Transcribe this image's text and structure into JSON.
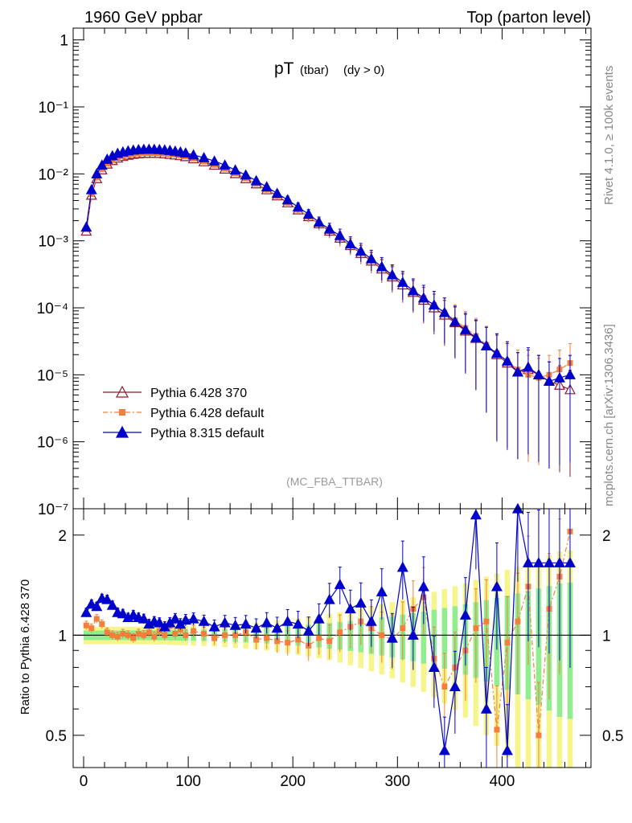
{
  "header": {
    "left": "1960 GeV ppbar",
    "right": "Top (parton level)"
  },
  "plot_title": {
    "main": "pT",
    "sub1": "(tbar)",
    "sub2": "(dy > 0)"
  },
  "watermark": "(MC_FBA_TTBAR)",
  "side_text": {
    "rivet": "Rivet 4.1.0, ≥ 100k events",
    "source": "mcplots.cern.ch [arXiv:1306.3436]"
  },
  "ratio_ylabel": "Ratio to Pythia 6.428 370",
  "legend": [
    {
      "label": "Pythia 6.428 370",
      "color": "#8b1a2b",
      "marker": "open-triangle"
    },
    {
      "label": "Pythia 6.428 default",
      "color": "#f47f3a",
      "marker": "filled-square"
    },
    {
      "label": "Pythia 8.315 default",
      "color": "#0000cc",
      "marker": "filled-triangle"
    }
  ],
  "colors": {
    "band_yellow": "#f5f58a",
    "band_green": "#90ee90"
  },
  "chart_data": {
    "type": "line",
    "main": {
      "yscale": "log",
      "ylim": [
        1e-07,
        1.5
      ],
      "xlim": [
        -10,
        485
      ],
      "ytick_labels": [
        {
          "v": 1,
          "t": "1"
        },
        {
          "v": 0.1,
          "t": "10⁻¹"
        },
        {
          "v": 0.01,
          "t": "10⁻²"
        },
        {
          "v": 0.001,
          "t": "10⁻³"
        },
        {
          "v": 0.0001,
          "t": "10⁻⁴"
        },
        {
          "v": 1e-05,
          "t": "10⁻⁵"
        },
        {
          "v": 1e-06,
          "t": "10⁻⁶"
        },
        {
          "v": 1e-07,
          "t": "10⁻⁷"
        }
      ],
      "series": [
        {
          "name": "Pythia 6.428 370",
          "x": [
            2.5,
            7.5,
            12.5,
            17.5,
            22.5,
            27.5,
            32.5,
            37.5,
            42.5,
            47.5,
            52.5,
            57.5,
            62.5,
            67.5,
            72.5,
            77.5,
            82.5,
            87.5,
            92.5,
            97.5,
            105,
            115,
            125,
            135,
            145,
            155,
            165,
            175,
            185,
            195,
            205,
            215,
            225,
            235,
            245,
            255,
            265,
            275,
            285,
            295,
            305,
            315,
            325,
            335,
            345,
            355,
            365,
            375,
            385,
            395,
            405,
            415,
            425,
            435,
            445,
            455,
            465
          ],
          "y": [
            0.0014,
            0.0048,
            0.0085,
            0.0115,
            0.014,
            0.0158,
            0.0172,
            0.0182,
            0.019,
            0.0196,
            0.02,
            0.0202,
            0.0203,
            0.0203,
            0.0202,
            0.02,
            0.0196,
            0.0192,
            0.0187,
            0.0181,
            0.0168,
            0.0152,
            0.0135,
            0.0118,
            0.0101,
            0.0085,
            0.0071,
            0.0058,
            0.0047,
            0.0037,
            0.0029,
            0.0023,
            0.0018,
            0.0014,
            0.0011,
            0.00085,
            0.00065,
            0.0005,
            0.00038,
            0.00029,
            0.00022,
            0.00017,
            0.00013,
            0.0001,
            7.8e-05,
            6e-05,
            4.5e-05,
            3.5e-05,
            2.7e-05,
            2e-05,
            1.5e-05,
            1.1e-05,
            1.2e-05,
            1e-05,
            8e-06,
            7e-06,
            6e-06
          ]
        },
        {
          "name": "Pythia 6.428 default",
          "x": [
            2.5,
            7.5,
            12.5,
            17.5,
            22.5,
            27.5,
            32.5,
            37.5,
            42.5,
            47.5,
            52.5,
            57.5,
            62.5,
            67.5,
            72.5,
            77.5,
            82.5,
            87.5,
            92.5,
            97.5,
            105,
            115,
            125,
            135,
            145,
            155,
            165,
            175,
            185,
            195,
            205,
            215,
            225,
            235,
            245,
            255,
            265,
            275,
            285,
            295,
            305,
            315,
            325,
            335,
            345,
            355,
            365,
            375,
            385,
            395,
            405,
            415,
            425,
            435,
            445,
            455,
            465
          ],
          "y": [
            0.0015,
            0.005,
            0.0088,
            0.0118,
            0.0142,
            0.016,
            0.0174,
            0.0184,
            0.0191,
            0.0197,
            0.0201,
            0.0203,
            0.0204,
            0.0204,
            0.0203,
            0.0201,
            0.0197,
            0.0193,
            0.0188,
            0.0182,
            0.0169,
            0.0153,
            0.0136,
            0.0119,
            0.0102,
            0.0086,
            0.0071,
            0.0058,
            0.0047,
            0.0037,
            0.0029,
            0.0023,
            0.0018,
            0.0014,
            0.0011,
            0.00085,
            0.00066,
            0.00051,
            0.00039,
            0.0003,
            0.00023,
            0.00018,
            0.00014,
            0.00011,
            8.5e-05,
            6.5e-05,
            5e-05,
            3.8e-05,
            2.8e-05,
            2.1e-05,
            1.6e-05,
            1.2e-05,
            1e-05,
            9e-06,
            1e-05,
            1.2e-05,
            1.5e-05
          ]
        },
        {
          "name": "Pythia 8.315 default",
          "x": [
            2.5,
            7.5,
            12.5,
            17.5,
            22.5,
            27.5,
            32.5,
            37.5,
            42.5,
            47.5,
            52.5,
            57.5,
            62.5,
            67.5,
            72.5,
            77.5,
            82.5,
            87.5,
            92.5,
            97.5,
            105,
            115,
            125,
            135,
            145,
            155,
            165,
            175,
            185,
            195,
            205,
            215,
            225,
            235,
            245,
            255,
            265,
            275,
            285,
            295,
            305,
            315,
            325,
            335,
            345,
            355,
            365,
            375,
            385,
            395,
            405,
            415,
            425,
            435,
            445,
            455,
            465
          ],
          "y": [
            0.0016,
            0.0058,
            0.01,
            0.0135,
            0.0165,
            0.0186,
            0.0202,
            0.0212,
            0.022,
            0.0226,
            0.023,
            0.0232,
            0.0233,
            0.0232,
            0.023,
            0.0227,
            0.0223,
            0.0218,
            0.0212,
            0.0205,
            0.0192,
            0.0174,
            0.0155,
            0.0135,
            0.0114,
            0.0096,
            0.0079,
            0.0064,
            0.0051,
            0.0041,
            0.0032,
            0.0025,
            0.0019,
            0.0015,
            0.0012,
            0.0009,
            0.0007,
            0.00054,
            0.00041,
            0.00031,
            0.00024,
            0.00018,
            0.00014,
            0.00011,
            8.5e-05,
            6.2e-05,
            4.7e-05,
            3.6e-05,
            2.7e-05,
            2.1e-05,
            1.6e-05,
            1.1e-05,
            1.3e-05,
            1e-05,
            8e-06,
            9e-06,
            1e-05
          ]
        }
      ]
    },
    "ratio": {
      "yscale": "log",
      "ylim": [
        0.4,
        2.4
      ],
      "xlim": [
        -10,
        485
      ],
      "ytick_labels": [
        {
          "v": 0.5,
          "t": "0.5"
        },
        {
          "v": 1,
          "t": "1"
        },
        {
          "v": 2,
          "t": "2"
        }
      ],
      "xtick_labels": [
        {
          "v": 0,
          "t": "0"
        },
        {
          "v": 100,
          "t": "100"
        },
        {
          "v": 200,
          "t": "200"
        },
        {
          "v": 300,
          "t": "300"
        },
        {
          "v": 400,
          "t": "400"
        }
      ],
      "series": [
        {
          "name": "Pythia 6.428 default",
          "x": [
            2.5,
            7.5,
            12.5,
            17.5,
            22.5,
            27.5,
            32.5,
            37.5,
            42.5,
            47.5,
            52.5,
            57.5,
            62.5,
            67.5,
            72.5,
            77.5,
            82.5,
            87.5,
            92.5,
            97.5,
            105,
            115,
            125,
            135,
            145,
            155,
            165,
            175,
            185,
            195,
            205,
            215,
            225,
            235,
            245,
            255,
            265,
            275,
            285,
            295,
            305,
            315,
            325,
            335,
            345,
            355,
            365,
            375,
            385,
            395,
            405,
            415,
            425,
            435,
            445,
            455,
            465
          ],
          "y": [
            1.07,
            1.05,
            1.12,
            1.08,
            1.02,
            1.0,
            0.99,
            1.01,
            1.0,
            0.98,
            1.01,
            1.0,
            1.02,
            0.99,
            1.03,
            1.0,
            1.07,
            1.01,
            1.04,
            1.0,
            1.03,
            1.01,
            0.98,
            1.0,
            1.0,
            1.02,
            0.97,
            0.98,
            0.96,
            0.95,
            0.97,
            0.93,
            0.98,
            0.96,
            1.02,
            1.06,
            1.1,
            1.05,
            1.0,
            0.97,
            1.05,
            1.2,
            1.3,
            0.85,
            0.7,
            0.8,
            0.9,
            1.05,
            1.1,
            0.52,
            0.95,
            1.1,
            1.4,
            0.5,
            1.2,
            1.5,
            2.05
          ]
        },
        {
          "name": "Pythia 8.315 default",
          "x": [
            2.5,
            7.5,
            12.5,
            17.5,
            22.5,
            27.5,
            32.5,
            37.5,
            42.5,
            47.5,
            52.5,
            57.5,
            62.5,
            67.5,
            72.5,
            77.5,
            82.5,
            87.5,
            92.5,
            97.5,
            105,
            115,
            125,
            135,
            145,
            155,
            165,
            175,
            185,
            195,
            205,
            215,
            225,
            235,
            245,
            255,
            265,
            275,
            285,
            295,
            305,
            315,
            325,
            335,
            345,
            355,
            365,
            375,
            385,
            395,
            405,
            415,
            425,
            435,
            445,
            455,
            465
          ],
          "y": [
            1.17,
            1.24,
            1.22,
            1.29,
            1.28,
            1.23,
            1.17,
            1.16,
            1.13,
            1.15,
            1.13,
            1.12,
            1.08,
            1.1,
            1.09,
            1.06,
            1.09,
            1.12,
            1.08,
            1.11,
            1.12,
            1.1,
            1.06,
            1.09,
            1.07,
            1.08,
            1.05,
            1.09,
            1.05,
            1.1,
            1.08,
            1.03,
            1.12,
            1.28,
            1.42,
            1.2,
            1.25,
            1.1,
            1.35,
            0.98,
            1.6,
            1.0,
            1.4,
            0.8,
            0.45,
            0.7,
            1.15,
            2.3,
            0.6,
            1.4,
            0.45,
            2.4,
            1.65,
            1.65,
            1.65,
            1.65,
            1.65
          ]
        }
      ]
    }
  }
}
